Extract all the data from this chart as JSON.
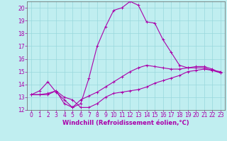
{
  "xlabel": "Windchill (Refroidissement éolien,°C)",
  "background_color": "#c0eef0",
  "grid_color": "#98d8dc",
  "line_color": "#aa00aa",
  "xlim": [
    -0.5,
    23.5
  ],
  "ylim": [
    12,
    20.5
  ],
  "xticks": [
    0,
    1,
    2,
    3,
    4,
    5,
    6,
    7,
    8,
    9,
    10,
    11,
    12,
    13,
    14,
    15,
    16,
    17,
    18,
    19,
    20,
    21,
    22,
    23
  ],
  "yticks": [
    12,
    13,
    14,
    15,
    16,
    17,
    18,
    19,
    20
  ],
  "curve1_x": [
    0,
    1,
    2,
    3,
    4,
    5,
    6,
    7,
    8,
    9,
    10,
    11,
    12,
    13,
    14,
    15,
    16,
    17,
    18,
    19,
    20,
    21,
    22,
    23
  ],
  "curve1_y": [
    13.2,
    13.2,
    13.2,
    13.5,
    13.0,
    12.8,
    12.2,
    12.2,
    12.5,
    13.0,
    13.3,
    13.4,
    13.5,
    13.6,
    13.8,
    14.1,
    14.3,
    14.5,
    14.7,
    15.0,
    15.1,
    15.2,
    15.1,
    14.9
  ],
  "curve2_x": [
    0,
    1,
    2,
    3,
    4,
    5,
    6,
    7,
    8,
    9,
    10,
    11,
    12,
    13,
    14,
    15,
    16,
    17,
    18,
    19,
    20,
    21,
    22,
    23
  ],
  "curve2_y": [
    13.2,
    13.5,
    14.2,
    13.4,
    12.8,
    12.2,
    12.5,
    14.5,
    17.0,
    18.5,
    19.8,
    20.0,
    20.5,
    20.2,
    18.9,
    18.8,
    17.5,
    16.5,
    15.5,
    15.3,
    15.3,
    15.3,
    15.1,
    15.0
  ],
  "curve3_x": [
    0,
    1,
    2,
    3,
    4,
    5,
    6,
    7,
    8,
    9,
    10,
    11,
    12,
    13,
    14,
    15,
    16,
    17,
    18,
    19,
    20,
    21,
    22,
    23
  ],
  "curve3_y": [
    13.2,
    13.2,
    13.3,
    13.5,
    12.5,
    12.2,
    12.8,
    13.1,
    13.4,
    13.8,
    14.2,
    14.6,
    15.0,
    15.3,
    15.5,
    15.4,
    15.3,
    15.2,
    15.2,
    15.3,
    15.4,
    15.4,
    15.2,
    14.9
  ],
  "tick_fontsize": 5.5,
  "label_fontsize": 6.0
}
